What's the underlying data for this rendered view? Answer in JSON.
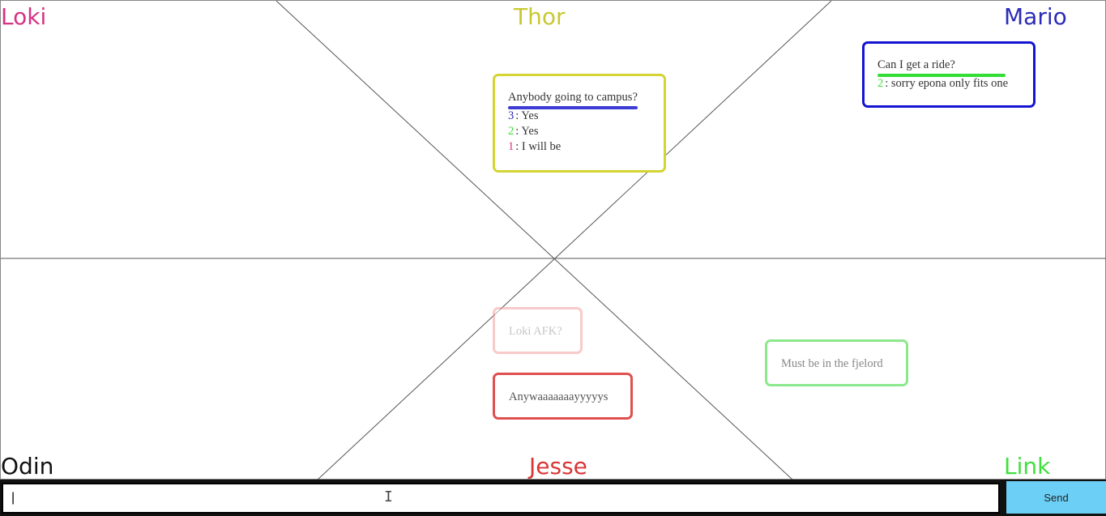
{
  "users": {
    "loki": {
      "name": "Loki",
      "color": "#d63384"
    },
    "thor": {
      "name": "Thor",
      "color": "#c8c832"
    },
    "mario": {
      "name": "Mario",
      "color": "#2b2bb8"
    },
    "odin": {
      "name": "Odin",
      "color": "#111111"
    },
    "jesse": {
      "name": "Jesse",
      "color": "#d93636"
    },
    "link": {
      "name": "Link",
      "color": "#3ee03e"
    }
  },
  "bubbles": {
    "thor_question": {
      "text": "Anybody going to campus?",
      "border_color": "#d4d435",
      "underline_color": "#3d3dd6",
      "replies": [
        {
          "count": "3",
          "text": "Yes",
          "color": "#2b2bb8"
        },
        {
          "count": "2",
          "text": "Yes",
          "color": "#3ee03e"
        },
        {
          "count": "1",
          "text": "I will be",
          "color": "#d63384"
        }
      ]
    },
    "mario_question": {
      "text": "Can I get a ride?",
      "border_color": "#1414d2",
      "underline_color": "#33dd33",
      "replies": [
        {
          "count": "2",
          "text": "sorry epona only fits one",
          "color": "#3ee03e"
        }
      ]
    },
    "jesse_faded": {
      "text": "Loki AFK?",
      "border_color": "#f3a0a0",
      "opacity": 0.55
    },
    "jesse_message": {
      "text": "Anywaaaaaaayyyyys",
      "border_color": "#e05050"
    },
    "link_message": {
      "text": "Must be in the fjelord",
      "border_color": "#8de88d"
    }
  },
  "composer": {
    "input_value": "|",
    "send_label": "Send"
  }
}
